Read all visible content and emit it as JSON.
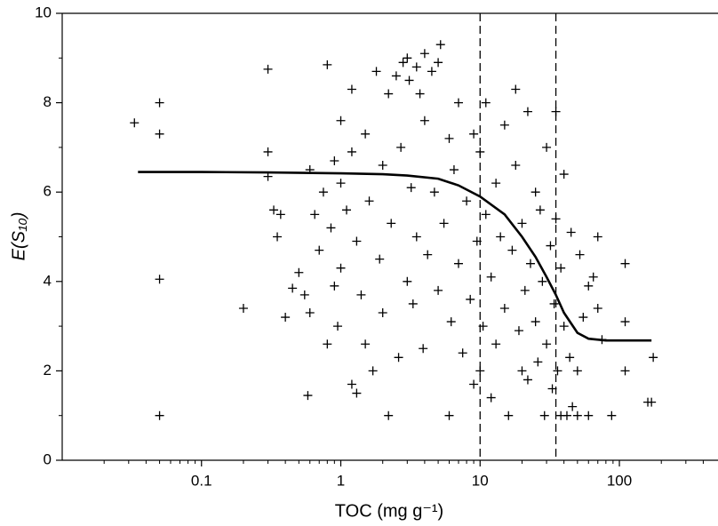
{
  "chart_data": {
    "type": "scatter",
    "color": "#000000",
    "xlabel": "TOC  (mg g⁻¹)",
    "ylabel": "E(S₁₀)",
    "xscale": "log",
    "xlim": [
      0.01,
      500
    ],
    "ylim": [
      0,
      10
    ],
    "xticks": [
      0.1,
      1,
      10,
      100
    ],
    "xminor_ticks": [
      0.02,
      0.03,
      0.04,
      0.05,
      0.06,
      0.07,
      0.08,
      0.09,
      0.2,
      0.3,
      0.4,
      0.5,
      0.6,
      0.7,
      0.8,
      0.9,
      2,
      3,
      4,
      5,
      6,
      7,
      8,
      9,
      20,
      30,
      40,
      50,
      60,
      70,
      80,
      90,
      200,
      300,
      400
    ],
    "yticks": [
      0,
      2,
      4,
      6,
      8,
      10
    ],
    "yminor_ticks": [
      1,
      3,
      5,
      7,
      9
    ],
    "vlines": [
      10,
      35
    ],
    "scatter": {
      "x": [
        0.033,
        0.05,
        0.05,
        0.05,
        0.05,
        0.2,
        0.3,
        0.3,
        0.3,
        0.33,
        0.35,
        0.37,
        0.4,
        0.45,
        0.5,
        0.55,
        0.58,
        0.6,
        0.6,
        0.65,
        0.7,
        0.75,
        0.8,
        0.8,
        0.85,
        0.9,
        0.9,
        0.95,
        1.0,
        1.0,
        1.0,
        1.1,
        1.2,
        1.2,
        1.2,
        1.3,
        1.3,
        1.4,
        1.5,
        1.5,
        1.6,
        1.7,
        1.8,
        1.9,
        2.0,
        2.0,
        2.2,
        2.2,
        2.3,
        2.5,
        2.6,
        2.7,
        2.8,
        3.0,
        3.0,
        3.1,
        3.2,
        3.3,
        3.5,
        3.5,
        3.7,
        3.9,
        4.0,
        4.0,
        4.2,
        4.5,
        4.7,
        5.0,
        5.0,
        5.2,
        5.5,
        6.0,
        6.0,
        6.2,
        6.5,
        7.0,
        7.0,
        7.5,
        8.0,
        8.5,
        9.0,
        9.0,
        9.5,
        10,
        10,
        10.5,
        11,
        11,
        12,
        12,
        13,
        13,
        14,
        15,
        15,
        16,
        17,
        18,
        18,
        19,
        20,
        20,
        21,
        22,
        22,
        23,
        25,
        25,
        26,
        27,
        28,
        29,
        30,
        30,
        32,
        33,
        34,
        35,
        35,
        36,
        38,
        38,
        40,
        40,
        42,
        44,
        45,
        46,
        50,
        50,
        52,
        55,
        60,
        60,
        65,
        70,
        70,
        75,
        88,
        110,
        110,
        110,
        160,
        170,
        175
      ],
      "y": [
        7.55,
        8.0,
        7.3,
        4.05,
        1.0,
        3.4,
        8.75,
        6.9,
        6.35,
        5.6,
        5.0,
        5.5,
        3.2,
        3.85,
        4.2,
        3.7,
        1.45,
        6.5,
        3.3,
        5.5,
        4.7,
        6.0,
        8.85,
        2.6,
        5.2,
        6.7,
        3.9,
        3.0,
        7.6,
        6.2,
        4.3,
        5.6,
        8.3,
        6.9,
        1.7,
        1.5,
        4.9,
        3.7,
        2.6,
        7.3,
        5.8,
        2.0,
        8.7,
        4.5,
        6.6,
        3.3,
        1.0,
        8.2,
        5.3,
        8.6,
        2.3,
        7.0,
        8.9,
        4.0,
        9.0,
        8.5,
        6.1,
        3.5,
        8.8,
        5.0,
        8.2,
        2.5,
        9.1,
        7.6,
        4.6,
        8.7,
        6.0,
        8.9,
        3.8,
        9.3,
        5.3,
        1.0,
        7.2,
        3.1,
        6.5,
        4.4,
        8.0,
        2.4,
        5.8,
        3.6,
        7.3,
        1.7,
        4.9,
        2.0,
        6.9,
        3.0,
        5.5,
        8.0,
        4.1,
        1.4,
        6.2,
        2.6,
        5.0,
        7.5,
        3.4,
        1.0,
        4.7,
        6.6,
        8.3,
        2.9,
        5.3,
        2.0,
        3.8,
        7.8,
        1.8,
        4.4,
        6.0,
        3.1,
        2.2,
        5.6,
        4.0,
        1.0,
        7.0,
        2.6,
        4.8,
        1.6,
        3.5,
        7.8,
        5.4,
        2.0,
        4.3,
        1.0,
        6.4,
        3.0,
        1.0,
        2.3,
        5.1,
        1.2,
        1.0,
        2.0,
        4.6,
        3.2,
        1.0,
        3.9,
        4.1,
        5.0,
        3.4,
        2.7,
        1.0,
        4.4,
        3.1,
        2.0,
        1.3,
        1.3,
        2.3
      ]
    },
    "curve": {
      "x": [
        0.035,
        0.1,
        0.3,
        1,
        2,
        3,
        5,
        7,
        10,
        15,
        20,
        25,
        30,
        35,
        40,
        50,
        60,
        80,
        100,
        170
      ],
      "y": [
        6.45,
        6.45,
        6.44,
        6.42,
        6.4,
        6.37,
        6.3,
        6.15,
        5.9,
        5.5,
        5.0,
        4.55,
        4.1,
        3.7,
        3.3,
        2.85,
        2.72,
        2.68,
        2.68,
        2.68
      ]
    }
  }
}
